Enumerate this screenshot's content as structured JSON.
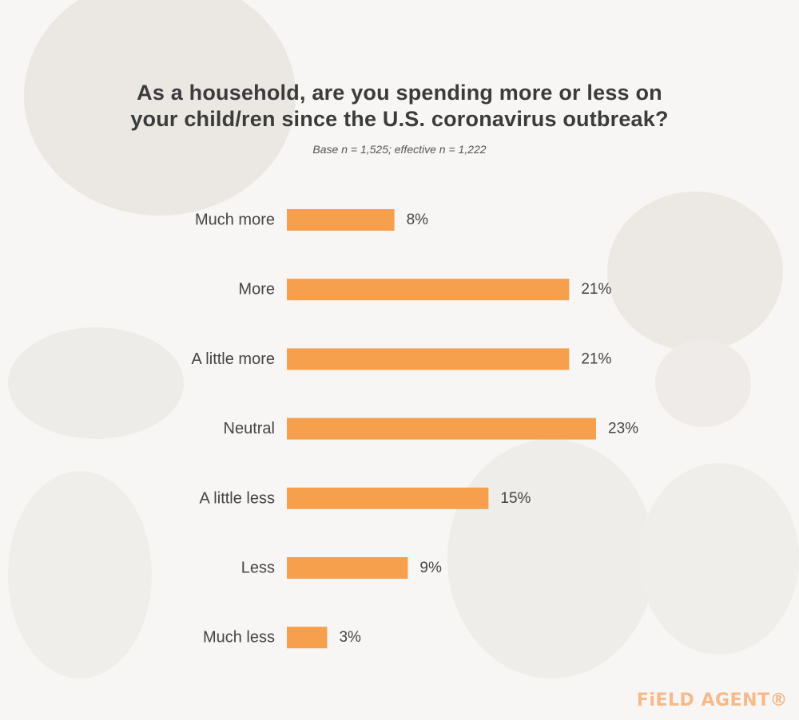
{
  "header": {
    "title_line1": "As a household, are you spending more or less on",
    "title_line2": "your child/ren since the U.S. coronavirus outbreak?",
    "subtitle": "Base n = 1,525; effective n = 1,222"
  },
  "logo": {
    "text": "FiELD AGENT®",
    "color": "#f6b98a"
  },
  "colors": {
    "bar": "#f6a04d",
    "text": "#444444"
  },
  "chart_data": {
    "type": "bar",
    "orientation": "horizontal",
    "categories": [
      "Much more",
      "More",
      "A little more",
      "Neutral",
      "A little less",
      "Less",
      "Much less"
    ],
    "values": [
      8,
      21,
      21,
      23,
      15,
      9,
      3
    ],
    "value_labels": [
      "8%",
      "21%",
      "21%",
      "23%",
      "15%",
      "9%",
      "3%"
    ],
    "unit": "%",
    "xlim": [
      0,
      23
    ],
    "grid": false,
    "legend": "none"
  }
}
